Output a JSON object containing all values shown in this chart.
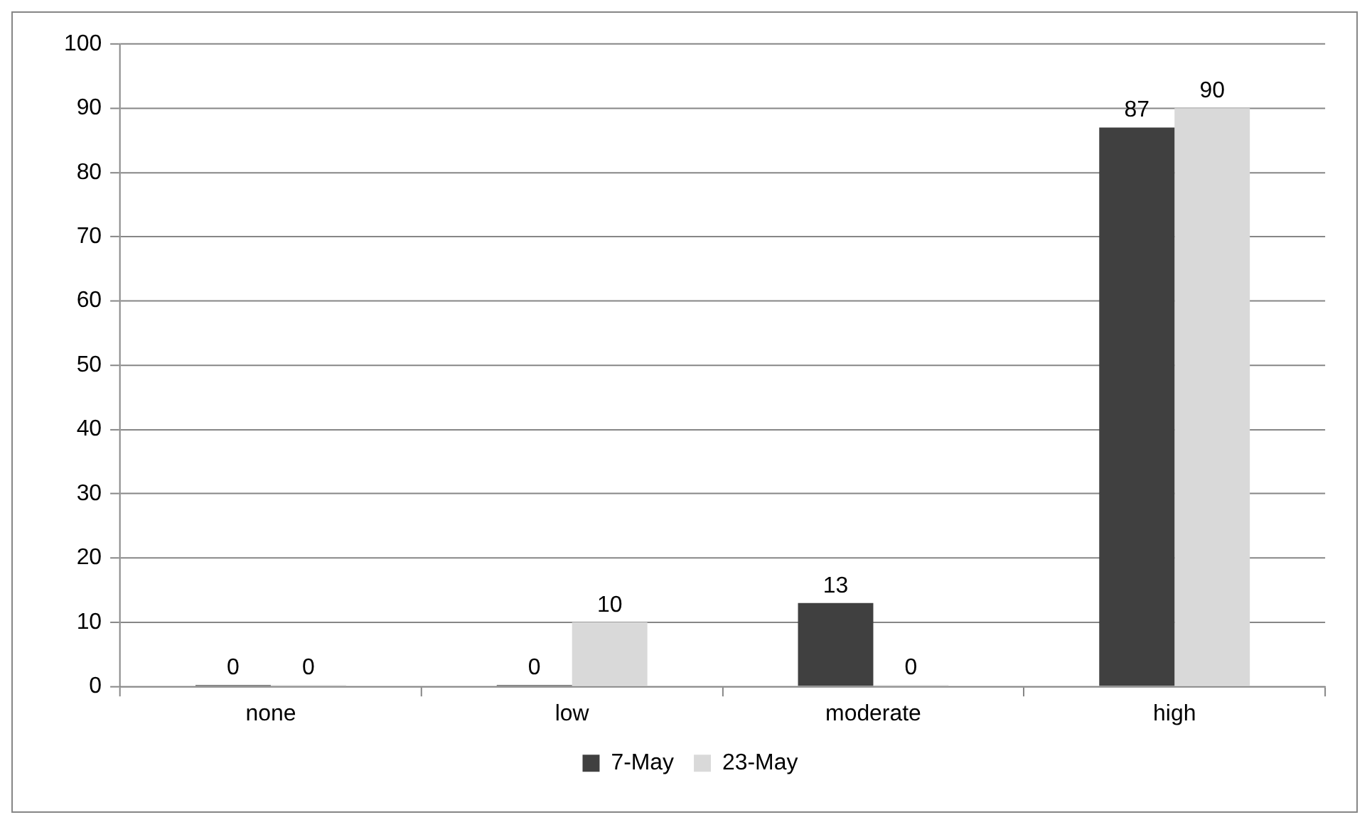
{
  "chart_data": {
    "type": "bar",
    "categories": [
      "none",
      "low",
      "moderate",
      "high"
    ],
    "series": [
      {
        "name": "7-May",
        "color": "#404040",
        "values": [
          0,
          0,
          13,
          87
        ]
      },
      {
        "name": "23-May",
        "color": "#d9d9d9",
        "values": [
          0,
          10,
          0,
          90
        ]
      }
    ],
    "ylim": [
      0,
      100
    ],
    "yticks": [
      0,
      10,
      20,
      30,
      40,
      50,
      60,
      70,
      80,
      90,
      100
    ],
    "grid": "y",
    "legend": "bottom",
    "data_labels": true
  }
}
